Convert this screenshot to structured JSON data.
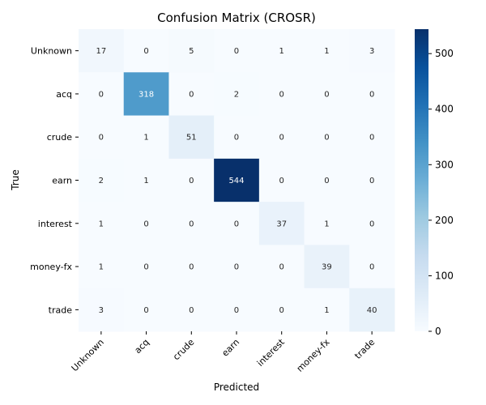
{
  "chart_data": {
    "type": "heatmap",
    "title": "Confusion Matrix (CROSR)",
    "xlabel": "Predicted",
    "ylabel": "True",
    "x_categories": [
      "Unknown",
      "acq",
      "crude",
      "earn",
      "interest",
      "money-fx",
      "trade"
    ],
    "y_categories": [
      "Unknown",
      "acq",
      "crude",
      "earn",
      "interest",
      "money-fx",
      "trade"
    ],
    "values": [
      [
        17,
        0,
        5,
        0,
        1,
        1,
        3
      ],
      [
        0,
        318,
        0,
        2,
        0,
        0,
        0
      ],
      [
        0,
        1,
        51,
        0,
        0,
        0,
        0
      ],
      [
        2,
        1,
        0,
        544,
        0,
        0,
        0
      ],
      [
        1,
        0,
        0,
        0,
        37,
        1,
        0
      ],
      [
        1,
        0,
        0,
        0,
        0,
        39,
        0
      ],
      [
        3,
        0,
        0,
        0,
        0,
        1,
        40
      ]
    ],
    "colormap": "Blues",
    "vmin": 0,
    "vmax": 544,
    "colorbar_ticks": [
      0,
      100,
      200,
      300,
      400,
      500
    ],
    "annotations": true,
    "grid": false
  }
}
